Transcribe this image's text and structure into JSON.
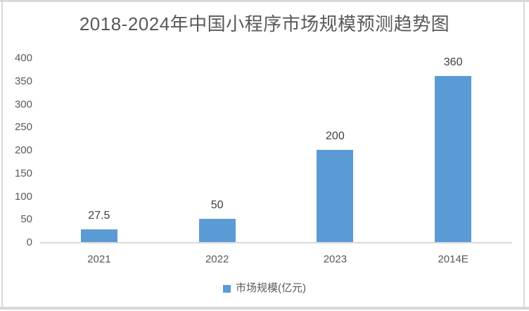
{
  "title": "2018-2024年中国小程序市场规模预测趋势图",
  "legend": {
    "label": "市场规模(亿元)",
    "swatch_color": "#5b9bd5"
  },
  "colors": {
    "bar": "#5b9bd5",
    "axis_line": "#d9d9d9",
    "title_text": "#595959",
    "tick_text": "#595959",
    "value_label_text": "#404040",
    "border": "#d9d9d9",
    "background": "#ffffff"
  },
  "chart_data": {
    "type": "bar",
    "title": "2018-2024年中国小程序市场规模预测趋势图",
    "categories": [
      "2021",
      "2022",
      "2023",
      "2014E"
    ],
    "values": [
      27.5,
      50,
      200,
      360
    ],
    "value_labels": [
      "27.5",
      "50",
      "200",
      "360"
    ],
    "series_name": "市场规模(亿元)",
    "xlabel": "",
    "ylabel": "",
    "yticks": [
      0,
      50,
      100,
      150,
      200,
      250,
      300,
      350,
      400
    ],
    "ylim": [
      0,
      400
    ],
    "grid": false,
    "legend_position": "bottom",
    "bar_color": "#5b9bd5"
  }
}
